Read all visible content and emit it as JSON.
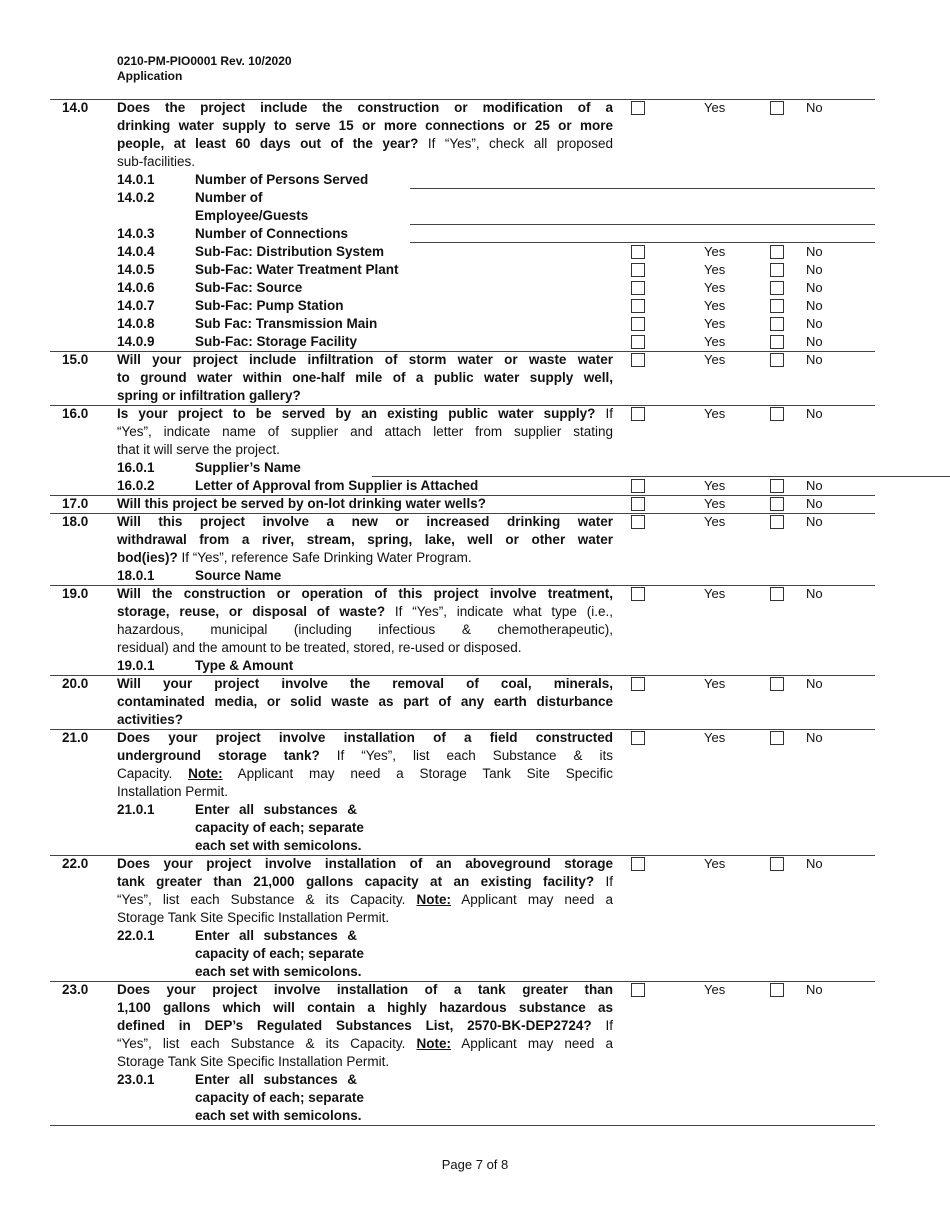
{
  "header": {
    "form_id": "0210-PM-PIO0001   Rev. 10/2020",
    "subtitle": "Application"
  },
  "yes_label": "Yes",
  "no_label": "No",
  "footer": {
    "page": "Page 7 of 8"
  },
  "rows": [
    {
      "num": "14.0",
      "yesno": true,
      "lines": [
        [
          {
            "t": "Does the project include the construction or modification of a",
            "b": true
          }
        ],
        [
          {
            "t": "drinking water supply to serve 15 or more connections or 25 or more",
            "b": true
          }
        ],
        [
          {
            "t": "people, at least 60 days out of the year?",
            "b": true
          },
          {
            "t": "  If “Yes”, check all proposed"
          }
        ],
        [
          {
            "t": "sub-facilities."
          }
        ]
      ],
      "subs": [
        {
          "num": "14.0.1",
          "label": [
            "Number of Persons Served"
          ],
          "field": "short"
        },
        {
          "num": "14.0.2",
          "label": [
            "Number of",
            "Employee/Guests"
          ],
          "field": "short"
        },
        {
          "num": "14.0.3",
          "label": [
            "Number of Connections"
          ],
          "field": "short"
        },
        {
          "num": "14.0.4",
          "label": [
            "Sub-Fac: Distribution System"
          ],
          "yesno": true
        },
        {
          "num": "14.0.5",
          "label": [
            "Sub-Fac: Water Treatment Plant"
          ],
          "yesno": true
        },
        {
          "num": "14.0.6",
          "label": [
            "Sub-Fac: Source"
          ],
          "yesno": true
        },
        {
          "num": "14.0.7",
          "label": [
            "Sub-Fac: Pump Station"
          ],
          "yesno": true
        },
        {
          "num": "14.0.8",
          "label": [
            "Sub Fac: Transmission Main"
          ],
          "yesno": true
        },
        {
          "num": "14.0.9",
          "label": [
            "Sub-Fac: Storage Facility"
          ],
          "yesno": true
        }
      ]
    },
    {
      "num": "15.0",
      "yesno": true,
      "lines": [
        [
          {
            "t": "Will your project include infiltration of storm water or waste water",
            "b": true
          }
        ],
        [
          {
            "t": "to ground water within one-half mile of a public water supply well,",
            "b": true
          }
        ],
        [
          {
            "t": "spring or infiltration gallery?",
            "b": true
          }
        ]
      ],
      "subs": []
    },
    {
      "num": "16.0",
      "yesno": true,
      "lines": [
        [
          {
            "t": "Is your project to be served by an existing public water supply?",
            "b": true
          },
          {
            "t": "  If"
          }
        ],
        [
          {
            "t": "“Yes”, indicate name of supplier and attach letter from supplier stating"
          }
        ],
        [
          {
            "t": "that it will serve the project."
          }
        ]
      ],
      "subs": [
        {
          "num": "16.0.1",
          "label": [
            "Supplier’s Name"
          ],
          "field": "wide"
        },
        {
          "num": "16.0.2",
          "label": [
            "Letter of Approval from Supplier is Attached"
          ],
          "yesno": true
        }
      ]
    },
    {
      "num": "17.0",
      "yesno": true,
      "lines": [
        [
          {
            "t": "Will this project be served by on-lot drinking water wells?",
            "b": true
          }
        ]
      ],
      "subs": []
    },
    {
      "num": "18.0",
      "yesno": true,
      "lines": [
        [
          {
            "t": "Will this project involve a new or increased drinking water",
            "b": true
          }
        ],
        [
          {
            "t": "withdrawal from a river, stream, spring, lake, well or other water",
            "b": true
          }
        ],
        [
          {
            "t": "bod(ies)?",
            "b": true
          },
          {
            "t": "  If “Yes”, reference Safe Drinking Water Program."
          }
        ]
      ],
      "subs": [
        {
          "num": "18.0.1",
          "label": [
            "Source Name"
          ]
        }
      ]
    },
    {
      "num": "19.0",
      "yesno": true,
      "lines": [
        [
          {
            "t": "Will the construction or operation of this project involve treatment,",
            "b": true
          }
        ],
        [
          {
            "t": "storage, reuse, or disposal of waste?",
            "b": true
          },
          {
            "t": "  If “Yes”, indicate what type (i.e.,"
          }
        ],
        [
          {
            "t": "hazardous, municipal (including infectious & chemotherapeutic),"
          }
        ],
        [
          {
            "t": "residual) and the amount to be treated, stored, re-used or disposed."
          }
        ]
      ],
      "subs": [
        {
          "num": "19.0.1",
          "label": [
            "Type & Amount"
          ]
        }
      ]
    },
    {
      "num": "20.0",
      "yesno": true,
      "lines": [
        [
          {
            "t": "Will your project involve the removal of coal, minerals,",
            "b": true
          }
        ],
        [
          {
            "t": "contaminated media, or solid waste as part of any earth disturbance",
            "b": true
          }
        ],
        [
          {
            "t": "activities?",
            "b": true
          }
        ]
      ],
      "subs": []
    },
    {
      "num": "21.0",
      "yesno": true,
      "lines": [
        [
          {
            "t": "Does your project involve installation of a field constructed",
            "b": true
          }
        ],
        [
          {
            "t": "underground storage tank?",
            "b": true
          },
          {
            "t": "   If “Yes”, list each Substance & its"
          }
        ],
        [
          {
            "t": "Capacity.  "
          },
          {
            "t": "Note:",
            "b": true,
            "u": true
          },
          {
            "t": "  Applicant may need a Storage Tank Site Specific"
          }
        ],
        [
          {
            "t": "Installation Permit."
          }
        ]
      ],
      "subs": [
        {
          "num": "21.0.1",
          "label": [
            "Enter all substances &",
            "capacity of each; separate",
            "each set with semicolons."
          ],
          "just": true
        }
      ]
    },
    {
      "num": "22.0",
      "yesno": true,
      "lines": [
        [
          {
            "t": "Does your project involve installation of an aboveground storage",
            "b": true
          }
        ],
        [
          {
            "t": "tank greater than 21,000 gallons capacity at an existing facility?",
            "b": true
          },
          {
            "t": "  If"
          }
        ],
        [
          {
            "t": "“Yes”, list each Substance & its Capacity.  "
          },
          {
            "t": "Note:",
            "b": true,
            "u": true
          },
          {
            "t": "  Applicant may need a"
          }
        ],
        [
          {
            "t": "Storage Tank Site Specific Installation Permit."
          }
        ]
      ],
      "subs": [
        {
          "num": "22.0.1",
          "label": [
            "Enter all substances &",
            "capacity of each; separate",
            "each set with semicolons."
          ],
          "just": true
        }
      ]
    },
    {
      "num": "23.0",
      "yesno": true,
      "lines": [
        [
          {
            "t": "Does your project involve installation of a tank greater than",
            "b": true
          }
        ],
        [
          {
            "t": "1,100 gallons which will contain a highly hazardous substance as",
            "b": true
          }
        ],
        [
          {
            "t": "defined in DEP’s Regulated Substances List, 2570-BK-DEP2724?",
            "b": true
          },
          {
            "t": "  If"
          }
        ],
        [
          {
            "t": "“Yes”, list each Substance & its Capacity.  "
          },
          {
            "t": "Note:",
            "b": true,
            "u": true
          },
          {
            "t": "  Applicant may need a"
          }
        ],
        [
          {
            "t": "Storage Tank Site Specific Installation Permit."
          }
        ]
      ],
      "subs": [
        {
          "num": "23.0.1",
          "label": [
            "Enter all substances &",
            "capacity of each; separate",
            "each set with semicolons."
          ],
          "just": true
        }
      ]
    }
  ]
}
